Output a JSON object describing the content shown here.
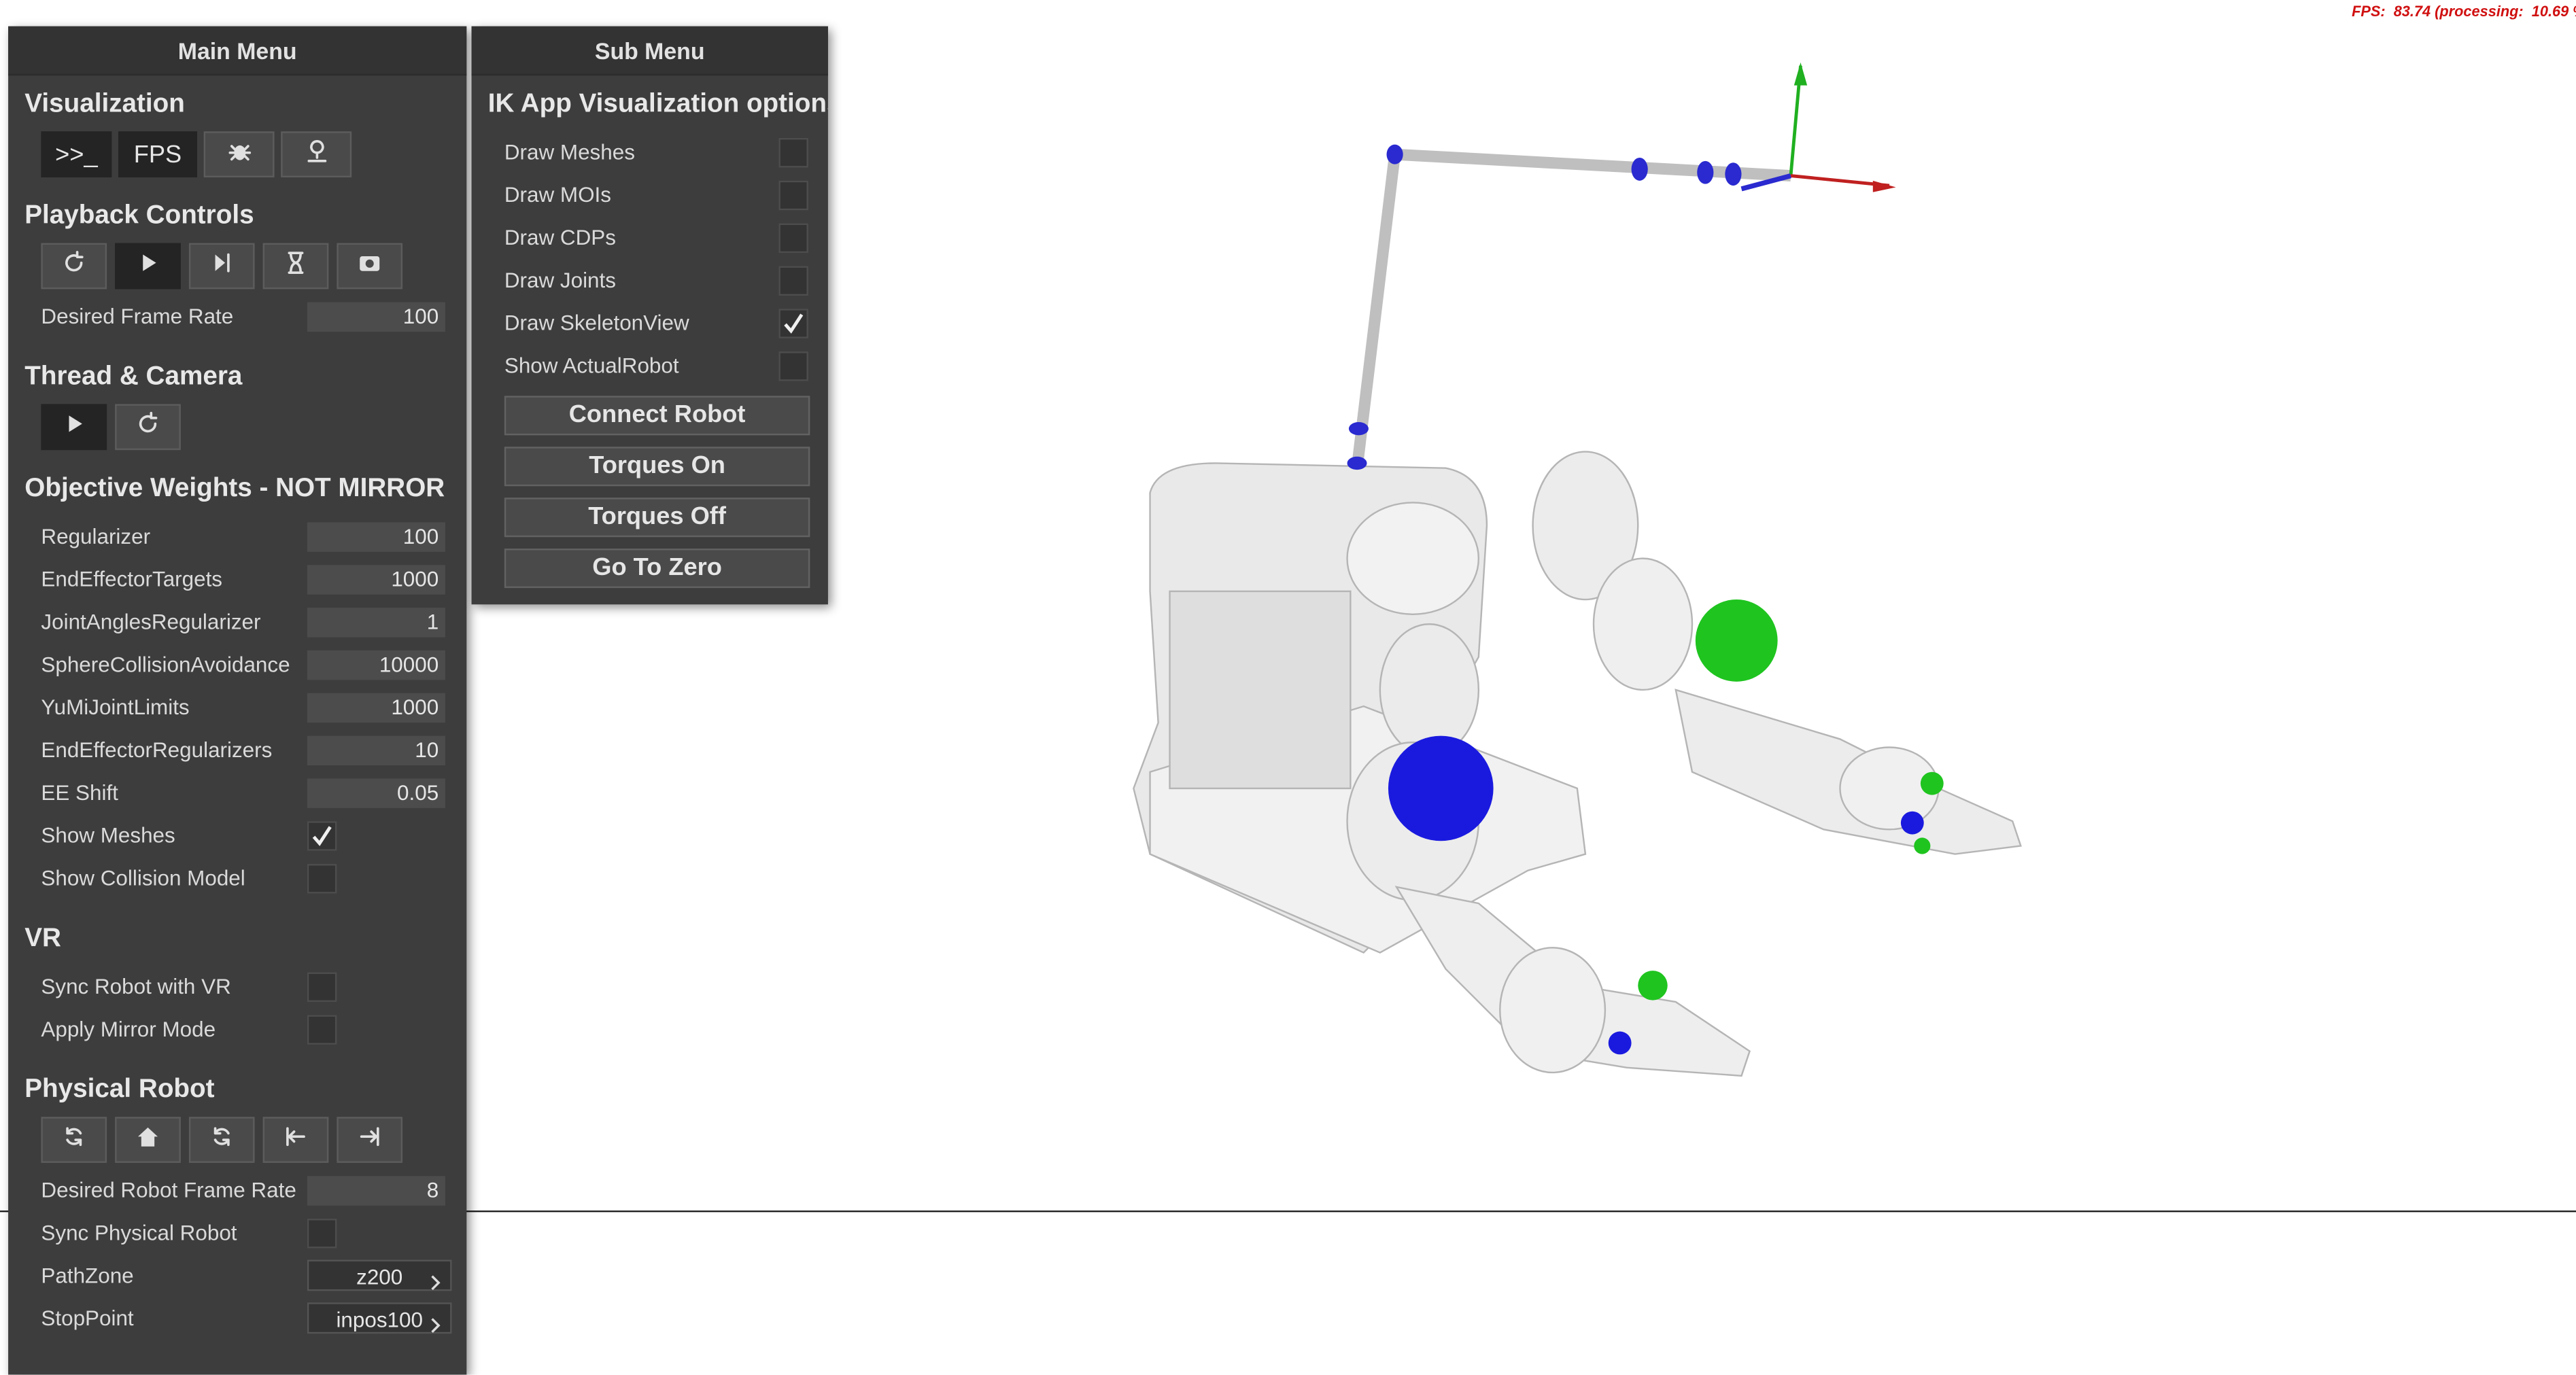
{
  "fps_text": "FPS:  83.74 (processing:  10.69 %",
  "main_menu": {
    "title": "Main Menu",
    "sections": [
      {
        "title": "Visualization",
        "buttons": [
          ">>_",
          "FPS"
        ]
      },
      {
        "title": "Playback Controls",
        "rows": [
          {
            "label": "Desired Frame Rate",
            "value": 100
          }
        ]
      },
      {
        "title": "Thread & Camera"
      },
      {
        "title": "Objective Weights - NOT MIRROR",
        "rows": [
          {
            "label": "Regularizer",
            "value": 100
          },
          {
            "label": "EndEffectorTargets",
            "value": 1000
          },
          {
            "label": "JointAnglesRegularizer",
            "value": 1
          },
          {
            "label": "SphereCollisionAvoidance",
            "value": 10000
          },
          {
            "label": "YuMiJointLimits",
            "value": 1000
          },
          {
            "label": "EndEffectorRegularizers",
            "value": 10
          },
          {
            "label": "EE Shift",
            "value": 0.05
          },
          {
            "label": "Show Meshes",
            "checked": true
          },
          {
            "label": "Show Collision Model",
            "checked": false
          }
        ]
      },
      {
        "title": "VR",
        "rows": [
          {
            "label": "Sync Robot with VR",
            "checked": false
          },
          {
            "label": "Apply Mirror Mode",
            "checked": false
          }
        ]
      },
      {
        "title": "Physical Robot",
        "rows": [
          {
            "label": "Desired Robot Frame Rate",
            "value": 8
          },
          {
            "label": "Sync Physical Robot",
            "checked": false
          },
          {
            "label": "PathZone",
            "choice": "z200"
          },
          {
            "label": "StopPoint",
            "choice": "inpos100"
          }
        ]
      }
    ]
  },
  "sub_menu": {
    "title": "Sub Menu",
    "section": "IK App Visualization options",
    "rows": [
      {
        "label": "Draw Meshes",
        "checked": false
      },
      {
        "label": "Draw MOIs",
        "checked": false
      },
      {
        "label": "Draw CDPs",
        "checked": false
      },
      {
        "label": "Draw Joints",
        "checked": false
      },
      {
        "label": "Draw SkeletonView",
        "checked": true
      },
      {
        "label": "Show ActualRobot",
        "checked": false
      }
    ],
    "buttons": [
      "Connect Robot",
      "Torques On",
      "Torques Off",
      "Go To Zero"
    ]
  }
}
